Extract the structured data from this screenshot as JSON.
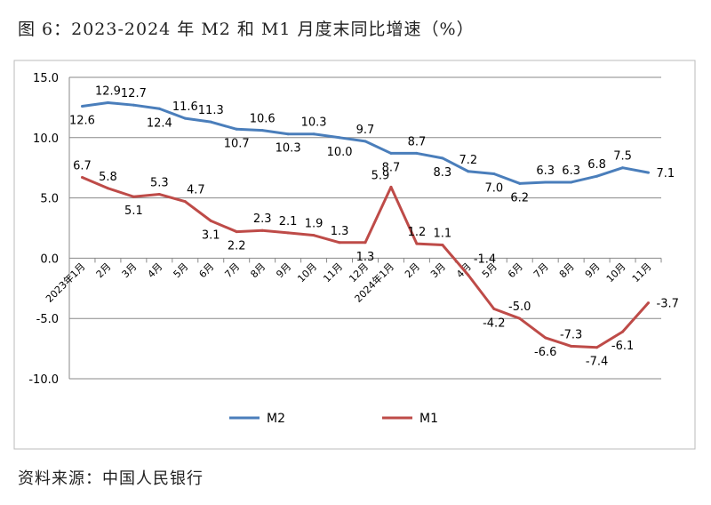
{
  "title": "图 6：2023-2024 年 M2 和 M1 月度末同比增速（%）",
  "source": "资料来源：中国人民银行",
  "chart_data": {
    "type": "line",
    "categories": [
      "2023年1月",
      "2月",
      "3月",
      "4月",
      "5月",
      "6月",
      "7月",
      "8月",
      "9月",
      "10月",
      "11月",
      "12月",
      "2024年1月",
      "2月",
      "3月",
      "4月",
      "5月",
      "6月",
      "7月",
      "8月",
      "9月",
      "10月",
      "11月"
    ],
    "series": [
      {
        "name": "M2",
        "color": "#4a7ebb",
        "values": [
          12.6,
          12.9,
          12.7,
          12.4,
          11.6,
          11.3,
          10.7,
          10.6,
          10.3,
          10.3,
          10.0,
          9.7,
          8.7,
          8.7,
          8.3,
          7.2,
          7.0,
          6.2,
          6.3,
          6.3,
          6.8,
          7.5,
          7.1
        ]
      },
      {
        "name": "M1",
        "color": "#be4b48",
        "values": [
          6.7,
          5.8,
          5.1,
          5.3,
          4.7,
          3.1,
          2.2,
          2.3,
          2.1,
          1.9,
          1.3,
          1.3,
          5.9,
          1.2,
          1.1,
          -1.4,
          -4.2,
          -5.0,
          -6.6,
          -7.3,
          -7.4,
          -6.1,
          -3.7
        ]
      }
    ],
    "yticks": [
      "15.0",
      "10.0",
      "5.0",
      "0.0",
      "-5.0",
      "-10.0"
    ],
    "ylim": [
      -10,
      15
    ],
    "grid": true,
    "legend": "bottom"
  }
}
